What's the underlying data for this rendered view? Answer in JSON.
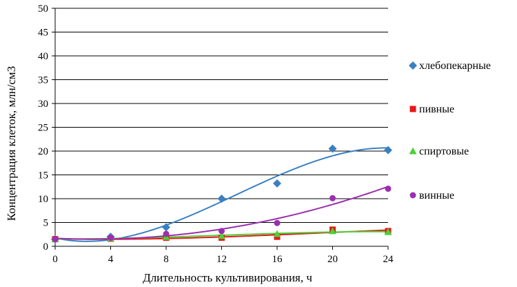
{
  "chart_data": {
    "type": "scatter",
    "title": "",
    "xlabel": "Длительность культивирования,  ч",
    "ylabel": "Концентрация  клеток, млн/см3",
    "xlim": [
      0,
      24
    ],
    "ylim": [
      0,
      50
    ],
    "x_ticks": [
      "0",
      "4",
      "8",
      "12",
      "16",
      "20",
      "24"
    ],
    "y_ticks": [
      "0",
      "5",
      "10",
      "15",
      "20",
      "25",
      "30",
      "35",
      "40",
      "45",
      "50"
    ],
    "grid": "horizontal",
    "legend_position": "right",
    "x": [
      0,
      4,
      8,
      12,
      16,
      20,
      24
    ],
    "series": [
      {
        "name": "хлебопекарные",
        "marker": "diamond",
        "color": "#3a7fc1",
        "values": [
          1.5,
          2.0,
          4.0,
          10.0,
          13.2,
          20.5,
          20.2
        ]
      },
      {
        "name": "пивные",
        "marker": "square",
        "color": "#e8161b",
        "values": [
          1.5,
          1.6,
          1.8,
          1.8,
          2.0,
          3.5,
          3.2
        ]
      },
      {
        "name": "спиртовые",
        "marker": "triangle",
        "color": "#4cd137",
        "values": [
          1.5,
          1.7,
          2.0,
          2.2,
          2.6,
          3.2,
          3.0
        ]
      },
      {
        "name": "винные",
        "marker": "circle",
        "color": "#9b2fae",
        "values": [
          1.5,
          1.8,
          2.6,
          3.2,
          4.9,
          10.1,
          12.1
        ]
      }
    ]
  }
}
